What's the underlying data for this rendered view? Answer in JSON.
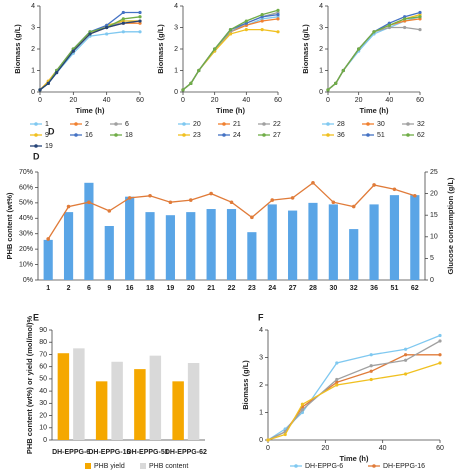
{
  "chart_data": [
    {
      "type": "line",
      "panel_label": "D",
      "xlabel": "Time (h)",
      "ylabel": "Biomass (g/L)",
      "x": [
        0,
        5,
        10,
        20,
        30,
        40,
        50,
        60
      ],
      "xlim": [
        0,
        60
      ],
      "xticks": [
        0,
        20,
        40,
        60
      ],
      "ylim": [
        0,
        4
      ],
      "yticks": [
        0,
        1,
        2,
        3,
        4
      ],
      "series": [
        {
          "name": "1",
          "color": "#7fc8f0",
          "values": [
            0.1,
            0.4,
            0.9,
            1.8,
            2.6,
            2.7,
            2.8,
            2.8
          ]
        },
        {
          "name": "2",
          "color": "#f08030",
          "values": [
            0.1,
            0.5,
            1.0,
            1.9,
            2.7,
            3.0,
            3.2,
            3.2
          ]
        },
        {
          "name": "6",
          "color": "#a0a0a0",
          "values": [
            0.1,
            0.4,
            1.0,
            2.0,
            2.8,
            3.0,
            3.3,
            3.3
          ]
        },
        {
          "name": "9",
          "color": "#f0c020",
          "values": [
            0.1,
            0.5,
            1.0,
            2.0,
            2.7,
            3.1,
            3.3,
            3.3
          ]
        },
        {
          "name": "16",
          "color": "#4472c4",
          "values": [
            0.1,
            0.4,
            1.0,
            2.0,
            2.8,
            3.1,
            3.7,
            3.7
          ]
        },
        {
          "name": "18",
          "color": "#70ad47",
          "values": [
            0.1,
            0.4,
            1.0,
            2.0,
            2.8,
            3.0,
            3.4,
            3.5
          ]
        },
        {
          "name": "19",
          "color": "#264478",
          "values": [
            0.1,
            0.4,
            0.9,
            1.9,
            2.7,
            3.0,
            3.2,
            3.3
          ]
        }
      ]
    },
    {
      "type": "line",
      "xlabel": "Time (h)",
      "ylabel": "Biomass (g/L)",
      "x": [
        0,
        5,
        10,
        20,
        30,
        40,
        50,
        60
      ],
      "xlim": [
        0,
        60
      ],
      "xticks": [
        0,
        20,
        40,
        60
      ],
      "ylim": [
        0,
        4
      ],
      "yticks": [
        0,
        1,
        2,
        3,
        4
      ],
      "series": [
        {
          "name": "20",
          "color": "#7fc8f0",
          "values": [
            0.1,
            0.4,
            1.0,
            1.9,
            2.8,
            3.1,
            3.4,
            3.5
          ]
        },
        {
          "name": "21",
          "color": "#f08030",
          "values": [
            0.1,
            0.4,
            1.0,
            2.0,
            2.8,
            3.1,
            3.3,
            3.4
          ]
        },
        {
          "name": "22",
          "color": "#a0a0a0",
          "values": [
            0.1,
            0.4,
            1.0,
            2.0,
            2.8,
            3.2,
            3.5,
            3.7
          ]
        },
        {
          "name": "23",
          "color": "#f0c020",
          "values": [
            0.1,
            0.4,
            1.0,
            1.9,
            2.7,
            2.9,
            2.9,
            2.8
          ]
        },
        {
          "name": "24",
          "color": "#4472c4",
          "values": [
            0.1,
            0.4,
            1.0,
            2.0,
            2.9,
            3.2,
            3.5,
            3.6
          ]
        },
        {
          "name": "27",
          "color": "#70ad47",
          "values": [
            0.1,
            0.4,
            1.0,
            2.0,
            2.9,
            3.3,
            3.6,
            3.8
          ]
        }
      ]
    },
    {
      "type": "line",
      "xlabel": "Time (h)",
      "ylabel": "Biomass (g/L)",
      "x": [
        0,
        5,
        10,
        20,
        30,
        40,
        50,
        60
      ],
      "xlim": [
        0,
        60
      ],
      "xticks": [
        0,
        20,
        40,
        60
      ],
      "ylim": [
        0,
        4
      ],
      "yticks": [
        0,
        1,
        2,
        3,
        4
      ],
      "series": [
        {
          "name": "28",
          "color": "#7fc8f0",
          "values": [
            0.1,
            0.4,
            1.0,
            1.9,
            2.7,
            3.0,
            3.3,
            3.5
          ]
        },
        {
          "name": "30",
          "color": "#f08030",
          "values": [
            0.1,
            0.4,
            1.0,
            2.0,
            2.8,
            3.1,
            3.3,
            3.4
          ]
        },
        {
          "name": "32",
          "color": "#a0a0a0",
          "values": [
            0.1,
            0.4,
            1.0,
            2.0,
            2.8,
            3.0,
            3.0,
            2.9
          ]
        },
        {
          "name": "36",
          "color": "#f0c020",
          "values": [
            0.1,
            0.4,
            1.0,
            2.0,
            2.8,
            3.1,
            3.4,
            3.6
          ]
        },
        {
          "name": "51",
          "color": "#4472c4",
          "values": [
            0.1,
            0.4,
            1.0,
            2.0,
            2.8,
            3.2,
            3.5,
            3.7
          ]
        },
        {
          "name": "62",
          "color": "#70ad47",
          "values": [
            0.1,
            0.4,
            1.0,
            2.0,
            2.8,
            3.1,
            3.4,
            3.5
          ]
        }
      ]
    },
    {
      "type": "bar",
      "panel_label": "D",
      "ylabel": "PHB content (wt%)",
      "y2label": "Glucose consumption (g/L)",
      "categories": [
        "1",
        "2",
        "6",
        "9",
        "16",
        "18",
        "19",
        "20",
        "21",
        "22",
        "23",
        "24",
        "27",
        "28",
        "30",
        "32",
        "36",
        "51",
        "62"
      ],
      "ylim": [
        0,
        70
      ],
      "yticks": [
        {
          "value": 0,
          "label": "0%"
        },
        {
          "value": 10,
          "label": "10%"
        },
        {
          "value": 20,
          "label": "20%"
        },
        {
          "value": 30,
          "label": "30%"
        },
        {
          "value": 40,
          "label": "40%"
        },
        {
          "value": 50,
          "label": "50%"
        },
        {
          "value": 60,
          "label": "60%"
        },
        {
          "value": 70,
          "label": "70%"
        }
      ],
      "y2lim": [
        0,
        25
      ],
      "y2ticks": [
        0,
        5,
        10,
        15,
        20,
        25
      ],
      "series": [
        {
          "color": "#5aa5e6",
          "values": [
            26,
            44,
            63,
            35,
            54,
            44,
            42,
            44,
            46,
            46,
            31,
            49,
            45,
            50,
            49,
            33,
            49,
            55,
            55
          ]
        },
        {
          "type": "line",
          "axis": "y2",
          "color": "#e07b39",
          "values": [
            9.5,
            17,
            18,
            16,
            19,
            19.5,
            18,
            18.5,
            20,
            18,
            14.5,
            18.5,
            19,
            22.5,
            18,
            17,
            22,
            21,
            19.5
          ]
        }
      ]
    },
    {
      "type": "bar",
      "panel_label": "E",
      "ylabel": "PHB content (wt%) or yield (mol/mol)%",
      "categories": [
        "DH-EPPG-6",
        "DH-EPPG-16",
        "DH-EPPG-51",
        "DH-EPPG-62"
      ],
      "ylim": [
        0,
        90
      ],
      "yticks": [
        0,
        10,
        20,
        30,
        40,
        50,
        60,
        70,
        80,
        90
      ],
      "series": [
        {
          "name": "PHB yield",
          "color": "#f5a800",
          "values": [
            71,
            48,
            58,
            48
          ]
        },
        {
          "name": "PHB content",
          "color": "#d9d9d9",
          "values": [
            75,
            64,
            69,
            63
          ]
        }
      ]
    },
    {
      "type": "line",
      "panel_label": "F",
      "xlabel": "Time (h)",
      "ylabel": "Biomass (g/L)",
      "x": [
        0,
        6,
        12,
        24,
        36,
        48,
        60
      ],
      "xlim": [
        0,
        60
      ],
      "xticks": [
        0,
        20,
        40,
        60
      ],
      "ylim": [
        0,
        4
      ],
      "yticks": [
        0,
        1,
        2,
        3,
        4
      ],
      "series": [
        {
          "name": "DH-EPPG-6",
          "color": "#7fc8f0",
          "values": [
            0,
            0.4,
            1.0,
            2.8,
            3.1,
            3.3,
            3.8
          ]
        },
        {
          "name": "DH-EPPG-16",
          "color": "#e07b39",
          "values": [
            0,
            0.3,
            1.2,
            2.1,
            2.5,
            3.1,
            3.1
          ]
        },
        {
          "color": "#a0a0a0",
          "values": [
            0,
            0.3,
            1.1,
            2.2,
            2.7,
            2.9,
            3.6
          ]
        },
        {
          "color": "#f0c020",
          "values": [
            0,
            0.2,
            1.3,
            2.0,
            2.2,
            2.4,
            2.8
          ]
        }
      ]
    }
  ]
}
